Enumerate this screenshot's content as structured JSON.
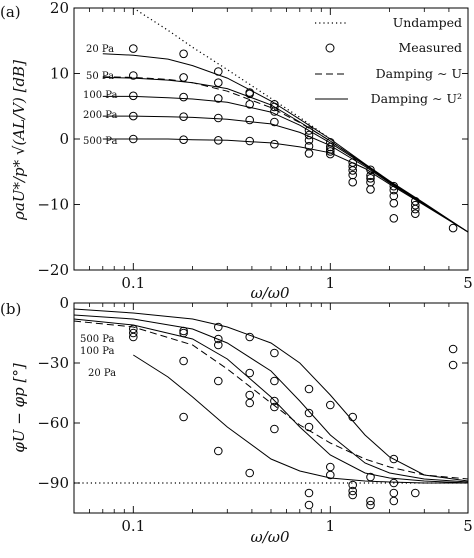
{
  "chart_data": [
    {
      "type": "line",
      "panel": "(a)",
      "title": "",
      "xlabel": "ω/ω0",
      "ylabel": "ρaU*/p* √(AL/V) [dB]",
      "xscale": "log",
      "xlim": [
        0.05,
        5
      ],
      "ylim": [
        -20,
        20
      ],
      "xticks": [
        0.1,
        1,
        5
      ],
      "xtick_labels": [
        "0.1",
        "1",
        "5"
      ],
      "yticks": [
        -20,
        -10,
        0,
        10,
        20
      ],
      "ytick_labels": [
        "−20",
        "−10",
        "0",
        "10",
        "20"
      ],
      "legend": {
        "position": "top-right",
        "entries": [
          {
            "label": "Undamped",
            "style": "dotted"
          },
          {
            "label": "Measured",
            "style": "circle"
          },
          {
            "label": "Damping ∼ U",
            "style": "dashed"
          },
          {
            "label": "Damping ∼ U²",
            "style": "solid"
          }
        ]
      },
      "series": [
        {
          "name": "Undamped",
          "style": "dotted",
          "x": [
            0.1,
            0.15,
            0.2,
            0.3,
            0.5,
            0.7,
            1.0
          ],
          "y": [
            20,
            16.6,
            14.0,
            10.6,
            6.2,
            3.3,
            0
          ]
        },
        {
          "name": "20 Pa",
          "style": "solid",
          "x": [
            0.07,
            0.1,
            0.15,
            0.2,
            0.3,
            0.5,
            0.7,
            1.0,
            1.5,
            2,
            3,
            5
          ],
          "y": [
            13.0,
            12.8,
            12.2,
            11.2,
            9.3,
            5.8,
            3.0,
            0.0,
            -3.8,
            -6.4,
            -9.8,
            -14.2
          ]
        },
        {
          "name": "50 Pa",
          "style": "solid",
          "x": [
            0.07,
            0.1,
            0.15,
            0.2,
            0.3,
            0.5,
            0.7,
            1.0,
            1.5,
            2,
            3,
            5
          ],
          "y": [
            9.4,
            9.3,
            9.0,
            8.6,
            7.7,
            5.2,
            2.6,
            -0.3,
            -3.9,
            -6.5,
            -9.9,
            -14.2
          ]
        },
        {
          "name": "Damping ∼ U (50 Pa)",
          "style": "dashed",
          "x": [
            0.07,
            0.1,
            0.15,
            0.2,
            0.3,
            0.5,
            0.7,
            1.0,
            1.5,
            2,
            3,
            5
          ],
          "y": [
            9.5,
            9.4,
            9.1,
            8.6,
            7.3,
            4.8,
            2.5,
            -0.3,
            -3.9,
            -6.5,
            -9.9,
            -14.2
          ]
        },
        {
          "name": "100 Pa",
          "style": "solid",
          "x": [
            0.07,
            0.1,
            0.15,
            0.2,
            0.3,
            0.5,
            0.7,
            1.0,
            1.5,
            2,
            3,
            5
          ],
          "y": [
            6.5,
            6.5,
            6.3,
            6.1,
            5.6,
            4.1,
            2.1,
            -0.6,
            -4.0,
            -6.6,
            -10.0,
            -14.2
          ]
        },
        {
          "name": "200 Pa",
          "style": "solid",
          "x": [
            0.07,
            0.1,
            0.15,
            0.2,
            0.3,
            0.5,
            0.7,
            1.0,
            1.5,
            2,
            3,
            5
          ],
          "y": [
            3.5,
            3.5,
            3.4,
            3.3,
            3.0,
            2.3,
            1.0,
            -1.0,
            -4.2,
            -6.7,
            -10.0,
            -14.2
          ]
        },
        {
          "name": "500 Pa",
          "style": "solid",
          "x": [
            0.07,
            0.1,
            0.15,
            0.2,
            0.3,
            0.5,
            0.7,
            1.0,
            1.5,
            2,
            3,
            5
          ],
          "y": [
            0.0,
            0.0,
            0.0,
            -0.1,
            -0.2,
            -0.6,
            -1.2,
            -2.1,
            -4.5,
            -6.9,
            -10.1,
            -14.2
          ]
        },
        {
          "name": "Measured",
          "style": "circle",
          "x": [
            0.1,
            0.1,
            0.1,
            0.1,
            0.1,
            0.18,
            0.18,
            0.18,
            0.18,
            0.18,
            0.27,
            0.27,
            0.27,
            0.27,
            0.27,
            0.39,
            0.39,
            0.39,
            0.39,
            0.39,
            0.52,
            0.52,
            0.52,
            0.52,
            0.52,
            0.78,
            0.78,
            0.78,
            0.78,
            0.78,
            1.0,
            1.0,
            1.0,
            1.0,
            1.0,
            1.3,
            1.3,
            1.3,
            1.3,
            1.3,
            1.6,
            1.6,
            1.6,
            1.6,
            1.6,
            2.1,
            2.1,
            2.1,
            2.1,
            2.1,
            2.7,
            2.7,
            2.7,
            2.7,
            4.2
          ],
          "y": [
            13.8,
            9.7,
            6.6,
            3.5,
            0.0,
            13.0,
            9.4,
            6.4,
            3.4,
            -0.1,
            10.3,
            8.6,
            6.2,
            3.2,
            -0.2,
            7.1,
            6.9,
            5.3,
            2.9,
            -0.3,
            5.3,
            4.9,
            4.2,
            2.6,
            -0.8,
            1.3,
            0.6,
            -0.2,
            -1.1,
            -2.2,
            -0.5,
            -1.2,
            -1.6,
            -1.9,
            -2.3,
            -3.6,
            -4.2,
            -4.8,
            -5.5,
            -6.6,
            -4.7,
            -5.6,
            -6.0,
            -6.6,
            -7.7,
            -7.2,
            -7.8,
            -8.7,
            -9.8,
            -12.1,
            -9.5,
            -10.1,
            -10.7,
            -11.4,
            -13.6
          ]
        }
      ],
      "annotations": [
        "20 Pa",
        "50 Pa",
        "100 Pa",
        "200 Pa",
        "500 Pa"
      ]
    },
    {
      "type": "line",
      "panel": "(b)",
      "title": "",
      "xlabel": "ω/ω0",
      "ylabel": "φU − φp [°]",
      "xscale": "log",
      "xlim": [
        0.05,
        5
      ],
      "ylim": [
        -105,
        0
      ],
      "xticks": [
        0.1,
        1,
        5
      ],
      "xtick_labels": [
        "0.1",
        "1",
        "5"
      ],
      "yticks": [
        0,
        -30,
        -60,
        -90
      ],
      "ytick_labels": [
        "0",
        "−30",
        "−60",
        "−90"
      ],
      "series": [
        {
          "name": "Undamped",
          "style": "dotted",
          "x": [
            0.05,
            5
          ],
          "y": [
            -90,
            -90
          ]
        },
        {
          "name": "500 Pa",
          "style": "solid",
          "x": [
            0.05,
            0.1,
            0.2,
            0.3,
            0.5,
            0.7,
            1.0,
            1.5,
            2,
            3,
            5
          ],
          "y": [
            -3,
            -5,
            -8,
            -12,
            -20,
            -30,
            -46,
            -66,
            -77,
            -86,
            -89
          ]
        },
        {
          "name": "100 Pa",
          "style": "solid",
          "x": [
            0.05,
            0.1,
            0.2,
            0.3,
            0.5,
            0.7,
            1.0,
            1.5,
            2,
            3,
            5
          ],
          "y": [
            -6,
            -8,
            -13,
            -20,
            -34,
            -49,
            -66,
            -80,
            -85,
            -88,
            -89.5
          ]
        },
        {
          "name": "50 Pa",
          "style": "solid",
          "x": [
            0.05,
            0.1,
            0.2,
            0.3,
            0.5,
            0.7,
            1.0,
            1.5,
            2,
            3,
            5
          ],
          "y": [
            -8,
            -11,
            -18,
            -28,
            -47,
            -62,
            -76,
            -85,
            -87.5,
            -89,
            -90
          ]
        },
        {
          "name": "Damping ∼ U (50 Pa)",
          "style": "dashed",
          "x": [
            0.05,
            0.1,
            0.2,
            0.3,
            0.5,
            0.7,
            1.0,
            1.5,
            2,
            3,
            5
          ],
          "y": [
            -9,
            -12,
            -21,
            -33,
            -50,
            -61,
            -70,
            -78,
            -82,
            -86,
            -88
          ]
        },
        {
          "name": "20 Pa",
          "style": "solid",
          "x": [
            0.1,
            0.15,
            0.2,
            0.3,
            0.5,
            0.7,
            1.0,
            1.5,
            2,
            3,
            5
          ],
          "y": [
            -26,
            -37,
            -47,
            -62,
            -78,
            -84,
            -87.5,
            -89,
            -89.5,
            -90,
            -90
          ]
        },
        {
          "name": "Measured",
          "style": "circle",
          "x": [
            0.1,
            0.1,
            0.1,
            0.18,
            0.18,
            0.18,
            0.18,
            0.27,
            0.27,
            0.27,
            0.27,
            0.27,
            0.39,
            0.39,
            0.39,
            0.39,
            0.39,
            0.52,
            0.52,
            0.52,
            0.52,
            0.52,
            0.78,
            0.78,
            0.78,
            0.78,
            0.78,
            1.0,
            1.0,
            1.0,
            1.3,
            1.3,
            1.3,
            1.3,
            1.6,
            1.6,
            1.6,
            2.1,
            2.1,
            2.1,
            2.1,
            2.7,
            4.2,
            4.2
          ],
          "y": [
            -13,
            -15,
            -17,
            -14,
            -15,
            -29,
            -57,
            -12,
            -18,
            -21,
            -39,
            -74,
            -17,
            -35,
            -46,
            -50,
            -85,
            -25,
            -39,
            -49,
            -52,
            -63,
            -43,
            -55,
            -62,
            -95,
            -101,
            -51,
            -82,
            -86,
            -57,
            -91,
            -94,
            -96,
            -87,
            -99,
            -101,
            -78,
            -90,
            -95,
            -99,
            -95,
            -23,
            -31
          ]
        }
      ],
      "annotations": [
        "500 Pa",
        "100 Pa",
        "20 Pa"
      ]
    }
  ]
}
